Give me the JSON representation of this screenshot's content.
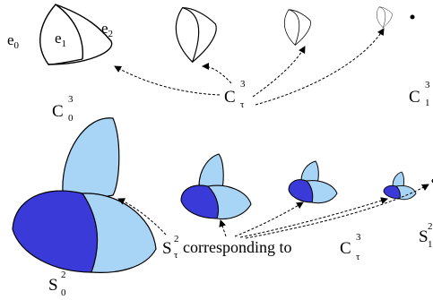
{
  "top_row": {
    "edge_labels": [
      "e",
      "e",
      "e"
    ],
    "edge_subscripts": [
      "0",
      "1",
      "2"
    ],
    "start": {
      "main": "C",
      "sup": "3",
      "sub": "0"
    },
    "family": {
      "main": "C",
      "sup": "3",
      "sub": "τ"
    },
    "end": {
      "main": "C",
      "sup": "3",
      "sub": "1"
    }
  },
  "bottom_row": {
    "start": {
      "main": "S",
      "sup": "2",
      "sub": "0"
    },
    "family": {
      "main": "S",
      "sup": "2",
      "sub": "τ"
    },
    "caption": "corresponding to",
    "caption_ref": {
      "main": "C",
      "sup": "3",
      "sub": "τ"
    },
    "end": {
      "main": "S",
      "sup": "2",
      "sub": "1"
    }
  },
  "colors": {
    "light_blue": "#a8d4f5",
    "dark_blue": "#3a3ad8",
    "stroke": "#000000"
  }
}
